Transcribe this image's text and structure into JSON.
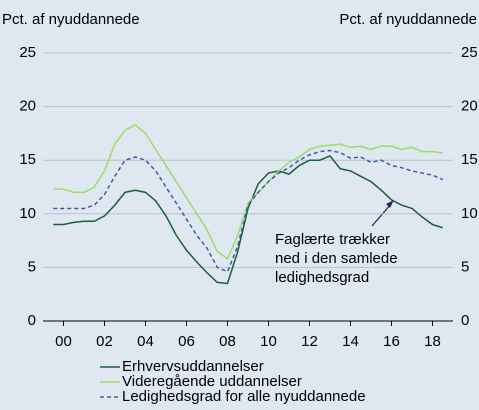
{
  "chart_data": {
    "type": "line",
    "ylabel": "Pct. af nyuddannede",
    "y2label": "Pct. af nyuddannede",
    "x": [
      -0.5,
      0,
      0.5,
      1,
      1.5,
      2,
      2.5,
      3,
      3.5,
      4,
      4.5,
      5,
      5.5,
      6,
      6.5,
      7,
      7.5,
      8,
      8.5,
      9,
      9.5,
      10,
      10.5,
      11,
      11.5,
      12,
      12.5,
      13,
      13.5,
      14,
      14.5,
      15,
      15.5,
      16,
      16.5,
      17,
      17.5,
      18,
      18.5
    ],
    "xlim": [
      -1,
      19
    ],
    "xticks": [
      {
        "value": 0,
        "label": "00"
      },
      {
        "value": 2,
        "label": "02"
      },
      {
        "value": 4,
        "label": "04"
      },
      {
        "value": 6,
        "label": "06"
      },
      {
        "value": 8,
        "label": "08"
      },
      {
        "value": 10,
        "label": "10"
      },
      {
        "value": 12,
        "label": "12"
      },
      {
        "value": 14,
        "label": "14"
      },
      {
        "value": 16,
        "label": "16"
      },
      {
        "value": 18,
        "label": "18"
      }
    ],
    "ylim": [
      0,
      25
    ],
    "yticks": [
      0,
      5,
      10,
      15,
      20,
      25
    ],
    "y2lim": [
      0,
      25
    ],
    "y2ticks": [
      0,
      5,
      10,
      15,
      20,
      25
    ],
    "grid": true,
    "series": [
      {
        "name": "Erhvervsuddannelser",
        "color": "#1f5c3c",
        "style": "solid",
        "values": [
          9.0,
          9.0,
          9.2,
          9.3,
          9.3,
          9.8,
          10.8,
          12.0,
          12.2,
          12.0,
          11.2,
          9.8,
          8.0,
          6.6,
          5.5,
          4.5,
          3.6,
          3.5,
          6.5,
          10.5,
          12.8,
          13.8,
          14.0,
          13.7,
          14.5,
          15.0,
          15.0,
          15.4,
          14.2,
          14.0,
          13.5,
          13.0,
          12.2,
          11.3,
          10.8,
          10.5,
          9.7,
          9.0,
          8.7
        ]
      },
      {
        "name": "Videregående uddannelser",
        "color": "#9bdc6a",
        "style": "solid",
        "values": [
          12.3,
          12.3,
          12.0,
          12.0,
          12.5,
          14.0,
          16.5,
          17.8,
          18.3,
          17.5,
          16.0,
          14.5,
          13.0,
          11.5,
          10.0,
          8.5,
          6.5,
          5.8,
          8.0,
          11.0,
          12.0,
          13.0,
          14.0,
          14.8,
          15.3,
          16.0,
          16.3,
          16.4,
          16.5,
          16.2,
          16.3,
          16.0,
          16.3,
          16.3,
          16.0,
          16.2,
          15.8,
          15.8,
          15.7
        ]
      },
      {
        "name": "Ledighedsgrad for alle nyuddannede",
        "color": "#3a5aa8",
        "style": "dashed",
        "values": [
          10.5,
          10.5,
          10.5,
          10.5,
          10.8,
          11.8,
          13.5,
          15.0,
          15.3,
          15.0,
          14.0,
          12.5,
          11.0,
          9.5,
          8.0,
          6.8,
          5.0,
          4.6,
          7.0,
          10.8,
          12.0,
          13.0,
          13.8,
          14.3,
          15.0,
          15.5,
          15.8,
          15.9,
          15.7,
          15.2,
          15.3,
          14.8,
          15.0,
          14.5,
          14.3,
          14.0,
          13.8,
          13.6,
          13.2
        ]
      }
    ],
    "annotation": [
      "Faglærte trækker",
      "ned i den samlede",
      "ledighedsgrad"
    ]
  }
}
